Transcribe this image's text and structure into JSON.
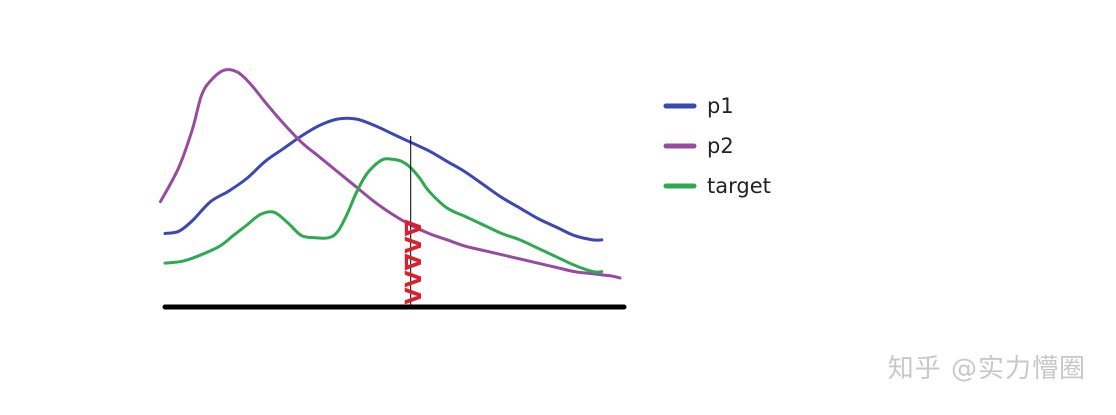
{
  "chart_data": {
    "type": "line",
    "title": "",
    "xlabel": "",
    "ylabel": "",
    "xlim": [
      0,
      100
    ],
    "ylim": [
      0,
      100
    ],
    "grid": false,
    "legend_position": "right",
    "series": [
      {
        "name": "p1",
        "color": "#3c46b4",
        "x": [
          0,
          3,
          6,
          10,
          14,
          18,
          22,
          26,
          30,
          34,
          38,
          42,
          46,
          50,
          54,
          58,
          62,
          66,
          70,
          74,
          78,
          82,
          86,
          90,
          94,
          96
        ],
        "y": [
          21,
          22,
          27,
          36,
          41,
          47,
          55,
          61,
          67,
          72,
          75,
          75,
          72,
          68,
          64,
          60,
          55,
          50,
          44,
          38,
          33,
          28,
          24,
          20,
          18,
          18
        ]
      },
      {
        "name": "p2",
        "color": "#964ba0",
        "x": [
          -1,
          3,
          6,
          8,
          10,
          13,
          16,
          19,
          22,
          26,
          30,
          34,
          38,
          42,
          46,
          50,
          54,
          58,
          62,
          66,
          70,
          74,
          78,
          82,
          86,
          90,
          94,
          98,
          100
        ],
        "y": [
          36,
          52,
          70,
          86,
          93,
          98,
          97,
          91,
          83,
          73,
          64,
          57,
          50,
          43,
          36,
          30,
          25,
          21,
          18,
          15,
          13,
          11,
          9,
          7,
          5,
          3,
          2,
          1,
          0
        ]
      },
      {
        "name": "target",
        "color": "#2daa50",
        "x": [
          0,
          4,
          8,
          12,
          15,
          18,
          21,
          24,
          27,
          30,
          33,
          36,
          38,
          40,
          42,
          44,
          46,
          48,
          50,
          52,
          54,
          56,
          58,
          62,
          66,
          70,
          74,
          78,
          82,
          86,
          90,
          94,
          96
        ],
        "y": [
          7,
          8,
          11,
          15,
          20,
          25,
          30,
          31,
          26,
          20,
          19,
          19,
          22,
          30,
          40,
          48,
          53,
          56,
          56,
          55,
          52,
          47,
          41,
          33,
          29,
          25,
          21,
          18,
          14,
          10,
          6,
          3,
          3
        ]
      }
    ],
    "vertical_marker": {
      "x": 54,
      "y_top": 67,
      "label": "ΔΛΔΛΛ",
      "label_color": "#dc1e2d"
    },
    "baseline_color": "#000000"
  },
  "watermark": "知乎 @实力懵圈"
}
